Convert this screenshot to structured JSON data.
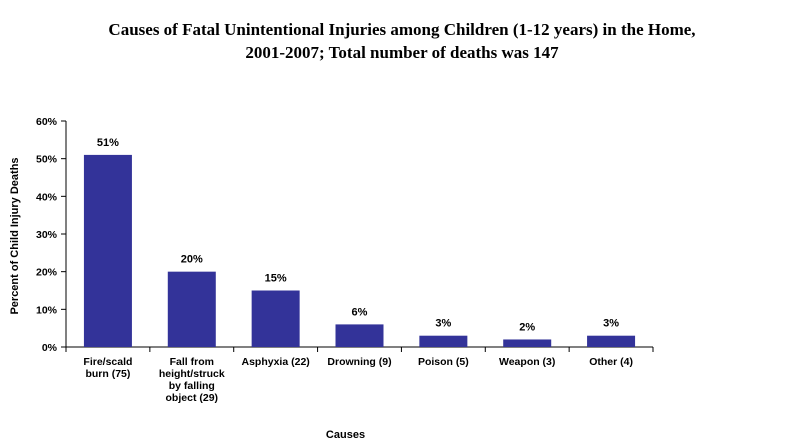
{
  "chart_data": {
    "type": "bar",
    "title_lines": [
      "Causes of Fatal Unintentional Injuries among Children (1-12 years) in the Home,",
      "2001-2007; Total number of deaths was 147"
    ],
    "xlabel": "Causes",
    "ylabel": "Percent of Child Injury Deaths",
    "ylim": [
      0,
      60
    ],
    "yticks": [
      0,
      10,
      20,
      30,
      40,
      50,
      60
    ],
    "ytick_labels": [
      "0%",
      "10%",
      "20%",
      "30%",
      "40%",
      "50%",
      "60%"
    ],
    "categories": [
      [
        "Fire/scald",
        "burn (75)"
      ],
      [
        "Fall from",
        "height/struck",
        "by falling",
        "object (29)"
      ],
      [
        "Asphyxia (22)"
      ],
      [
        "Drowning (9)"
      ],
      [
        "Poison (5)"
      ],
      [
        "Weapon (3)"
      ],
      [
        "Other (4)"
      ]
    ],
    "values": [
      51,
      20,
      15,
      6,
      3,
      2,
      3
    ],
    "data_labels": [
      "51%",
      "20%",
      "15%",
      "6%",
      "3%",
      "2%",
      "3%"
    ],
    "bar_color": "#333399",
    "grid": false,
    "legend": "none"
  }
}
